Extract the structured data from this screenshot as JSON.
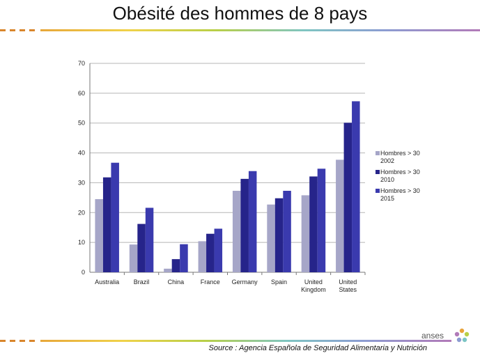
{
  "slide": {
    "title": "Obésité des hommes de 8 pays",
    "source": "Source : Agencia Española de Seguridad Alimentaria y Nutrición",
    "logo_text": "anses"
  },
  "colors": {
    "series": [
      "#a6a6c8",
      "#26248a",
      "#3a3aae"
    ],
    "grid": "#b5b5b5",
    "axis": "#777777"
  },
  "chart_data": {
    "type": "bar",
    "categories": [
      [
        "Australia"
      ],
      [
        "Brazil"
      ],
      [
        "China"
      ],
      [
        "France"
      ],
      [
        "Germany"
      ],
      [
        "Spain"
      ],
      [
        "United",
        "Kingdom"
      ],
      [
        "United",
        "States"
      ]
    ],
    "series": [
      {
        "name": [
          "Hombres > 30",
          "2002"
        ],
        "values": [
          24.5,
          9.3,
          1.2,
          10.4,
          27.3,
          22.7,
          25.8,
          37.7
        ]
      },
      {
        "name": [
          "Hombres > 30",
          "2010"
        ],
        "values": [
          31.8,
          16.2,
          4.4,
          12.9,
          31.3,
          24.8,
          32.1,
          50.1
        ]
      },
      {
        "name": [
          "Hombres > 30",
          "2015"
        ],
        "values": [
          36.7,
          21.6,
          9.4,
          14.6,
          33.9,
          27.3,
          34.7,
          57.3
        ]
      }
    ],
    "ylim": [
      0,
      70
    ],
    "yticks": [
      0,
      10,
      20,
      30,
      40,
      50,
      60,
      70
    ],
    "grid": true,
    "legend": "right"
  }
}
